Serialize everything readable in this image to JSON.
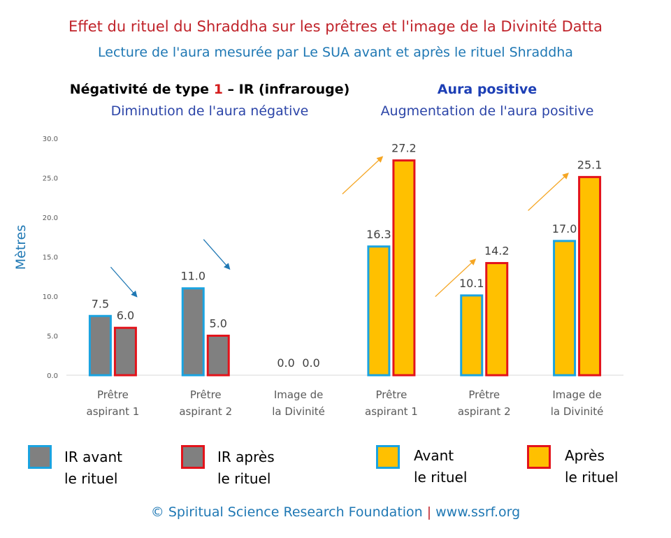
{
  "title": "Effet du rituel du Shraddha sur les prêtres et l'image de la Divinité Datta",
  "subtitle": "Lecture de l'aura mesurée par Le SUA avant et après le rituel Shraddha",
  "section_left": {
    "heading_prefix": "Négativité de type ",
    "heading_number": "1",
    "heading_suffix": " – IR (infrarouge)",
    "subheading": "Diminution de l'aura négative"
  },
  "section_right": {
    "heading": "Aura positive",
    "subheading": "Augmentation de l'aura positive"
  },
  "legend": [
    {
      "label_line1": "IR avant",
      "label_line2": "le rituel",
      "fill": "#808080",
      "border": "#1aa3e0"
    },
    {
      "label_line1": "IR après",
      "label_line2": "le rituel",
      "fill": "#808080",
      "border": "#e3131b"
    },
    {
      "label_line1": "Avant",
      "label_line2": "le rituel",
      "fill": "#ffc000",
      "border": "#1aa3e0"
    },
    {
      "label_line1": "Après",
      "label_line2": "le rituel",
      "fill": "#ffc000",
      "border": "#e3131b"
    }
  ],
  "footer": {
    "left": "© Spiritual Science Research Foundation",
    "separator": "|",
    "right": "www.ssrf.org"
  },
  "chart_data": {
    "type": "bar",
    "ylabel": "Mètres",
    "xlabel": "",
    "ylim": [
      0,
      30
    ],
    "yticks": [
      "0.0",
      "5.0",
      "10.0",
      "15.0",
      "20.0",
      "25.0",
      "30.0"
    ],
    "grid": false,
    "categories": [
      [
        "Prêtre",
        "aspirant 1"
      ],
      [
        "Prêtre",
        "aspirant 2"
      ],
      [
        "Image de",
        "la Divinité"
      ],
      [
        "Prêtre",
        "aspirant 1"
      ],
      [
        "Prêtre",
        "aspirant 2"
      ],
      [
        "Image de",
        "la Divinité"
      ]
    ],
    "series": [
      {
        "name": "IR avant le rituel",
        "values": [
          7.5,
          11.0,
          0.0,
          null,
          null,
          null
        ],
        "fill": "#808080",
        "border": "#1aa3e0"
      },
      {
        "name": "IR après le rituel",
        "values": [
          6.0,
          5.0,
          0.0,
          null,
          null,
          null
        ],
        "fill": "#808080",
        "border": "#e3131b"
      },
      {
        "name": "Avant le rituel",
        "values": [
          null,
          null,
          null,
          16.3,
          10.1,
          17.0
        ],
        "fill": "#ffc000",
        "border": "#1aa3e0"
      },
      {
        "name": "Après le rituel",
        "values": [
          null,
          null,
          null,
          27.2,
          14.2,
          25.1
        ],
        "fill": "#ffc000",
        "border": "#e3131b"
      }
    ],
    "data_labels": [
      "7.5",
      "6.0",
      "11.0",
      "5.0",
      "0.0",
      "0.0",
      "16.3",
      "27.2",
      "10.1",
      "14.2",
      "17.0",
      "25.1"
    ],
    "trend_arrows": [
      {
        "direction": "down",
        "color": "#1f78b4"
      },
      {
        "direction": "down",
        "color": "#1f78b4"
      },
      {
        "direction": "up",
        "color": "#f5a623"
      },
      {
        "direction": "up",
        "color": "#f5a623"
      },
      {
        "direction": "up",
        "color": "#f5a623"
      }
    ]
  }
}
